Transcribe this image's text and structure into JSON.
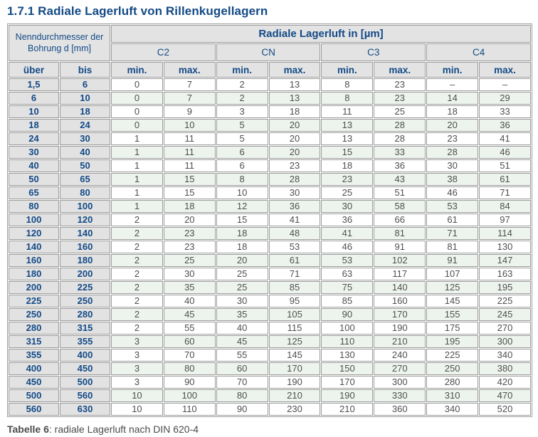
{
  "page": {
    "title": "1.7.1 Radiale Lagerluft von Rillenkugellagern",
    "caption_label": "Tabelle 6",
    "caption_rest": ": radiale Lagerluft nach DIN 620-4"
  },
  "colors": {
    "accent_blue": "#134a86",
    "text_gray": "#4f4f4f",
    "border_gray": "#9c9c9c",
    "header_bg": "#e3e3e3",
    "range_bg": "#e2e2e2",
    "stripe_green": "#edf4ed",
    "caption_gray": "#4b4b4b",
    "page_bg": "#ffffff"
  },
  "table": {
    "header": {
      "bore_label": "Nenndurchmesser der Bohrung d [mm]",
      "clearance_label": "Radiale Lagerluft in [µm]",
      "groups": [
        "C2",
        "CN",
        "C3",
        "C4"
      ],
      "over": "über",
      "to": "bis",
      "min": "min.",
      "max": "max."
    },
    "rows": [
      [
        "1,5",
        "6",
        "0",
        "7",
        "2",
        "13",
        "8",
        "23",
        "–",
        "–"
      ],
      [
        "6",
        "10",
        "0",
        "7",
        "2",
        "13",
        "8",
        "23",
        "14",
        "29"
      ],
      [
        "10",
        "18",
        "0",
        "9",
        "3",
        "18",
        "11",
        "25",
        "18",
        "33"
      ],
      [
        "18",
        "24",
        "0",
        "10",
        "5",
        "20",
        "13",
        "28",
        "20",
        "36"
      ],
      [
        "24",
        "30",
        "1",
        "11",
        "5",
        "20",
        "13",
        "28",
        "23",
        "41"
      ],
      [
        "30",
        "40",
        "1",
        "11",
        "6",
        "20",
        "15",
        "33",
        "28",
        "46"
      ],
      [
        "40",
        "50",
        "1",
        "11",
        "6",
        "23",
        "18",
        "36",
        "30",
        "51"
      ],
      [
        "50",
        "65",
        "1",
        "15",
        "8",
        "28",
        "23",
        "43",
        "38",
        "61"
      ],
      [
        "65",
        "80",
        "1",
        "15",
        "10",
        "30",
        "25",
        "51",
        "46",
        "71"
      ],
      [
        "80",
        "100",
        "1",
        "18",
        "12",
        "36",
        "30",
        "58",
        "53",
        "84"
      ],
      [
        "100",
        "120",
        "2",
        "20",
        "15",
        "41",
        "36",
        "66",
        "61",
        "97"
      ],
      [
        "120",
        "140",
        "2",
        "23",
        "18",
        "48",
        "41",
        "81",
        "71",
        "114"
      ],
      [
        "140",
        "160",
        "2",
        "23",
        "18",
        "53",
        "46",
        "91",
        "81",
        "130"
      ],
      [
        "160",
        "180",
        "2",
        "25",
        "20",
        "61",
        "53",
        "102",
        "91",
        "147"
      ],
      [
        "180",
        "200",
        "2",
        "30",
        "25",
        "71",
        "63",
        "117",
        "107",
        "163"
      ],
      [
        "200",
        "225",
        "2",
        "35",
        "25",
        "85",
        "75",
        "140",
        "125",
        "195"
      ],
      [
        "225",
        "250",
        "2",
        "40",
        "30",
        "95",
        "85",
        "160",
        "145",
        "225"
      ],
      [
        "250",
        "280",
        "2",
        "45",
        "35",
        "105",
        "90",
        "170",
        "155",
        "245"
      ],
      [
        "280",
        "315",
        "2",
        "55",
        "40",
        "115",
        "100",
        "190",
        "175",
        "270"
      ],
      [
        "315",
        "355",
        "3",
        "60",
        "45",
        "125",
        "110",
        "210",
        "195",
        "300"
      ],
      [
        "355",
        "400",
        "3",
        "70",
        "55",
        "145",
        "130",
        "240",
        "225",
        "340"
      ],
      [
        "400",
        "450",
        "3",
        "80",
        "60",
        "170",
        "150",
        "270",
        "250",
        "380"
      ],
      [
        "450",
        "500",
        "3",
        "90",
        "70",
        "190",
        "170",
        "300",
        "280",
        "420"
      ],
      [
        "500",
        "560",
        "10",
        "100",
        "80",
        "210",
        "190",
        "330",
        "310",
        "470"
      ],
      [
        "560",
        "630",
        "10",
        "110",
        "90",
        "230",
        "210",
        "360",
        "340",
        "520"
      ]
    ]
  }
}
